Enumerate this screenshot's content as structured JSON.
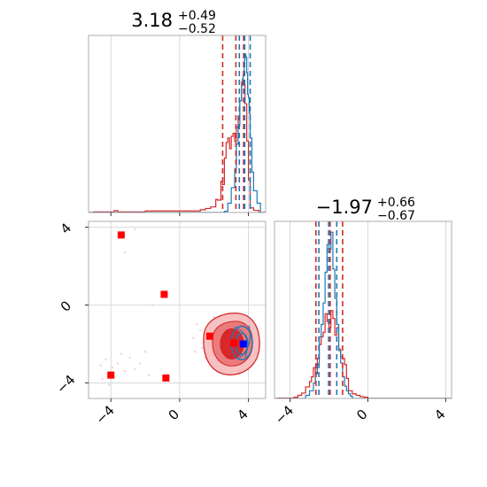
{
  "chart_data": [
    {
      "type": "histogram",
      "panel": "marginal-param-1",
      "title": {
        "value": "3.18",
        "sup": "+0.49",
        "sub": "−0.52"
      },
      "xlim": [
        -5.3,
        5.0
      ],
      "grid": true,
      "x_ticks": [
        -4,
        0,
        4
      ],
      "x_tick_labels_shown": false,
      "y_tick_labels_shown": false,
      "series": [
        {
          "color": "#d62728",
          "bin_edges": [
            -5.0,
            -3.8,
            -3.6,
            -2.0,
            1.2,
            1.5,
            1.8,
            2.1,
            2.2,
            2.4,
            2.5,
            2.6,
            2.7,
            2.8,
            2.9,
            3.0,
            3.1,
            3.2,
            3.3,
            3.4,
            3.5,
            3.6,
            3.7,
            3.8,
            3.9,
            4.0,
            4.1,
            4.3,
            4.6
          ],
          "heights": [
            0.2,
            0.6,
            0.2,
            0.5,
            0.9,
            1.3,
            1.8,
            4.2,
            4.0,
            10.0,
            9.0,
            17.5,
            22.5,
            24.0,
            20.5,
            24.5,
            25.5,
            23.0,
            27.5,
            31.0,
            36.0,
            42.0,
            41.0,
            35.0,
            23.0,
            10.5,
            1.5,
            0.7
          ]
        },
        {
          "color": "#1f77b4",
          "bin_edges": [
            2.6,
            2.8,
            3.0,
            3.2,
            3.3,
            3.4,
            3.5,
            3.6,
            3.65,
            3.7,
            3.75,
            3.8,
            3.85,
            3.9,
            3.95,
            4.0,
            4.05,
            4.1,
            4.2,
            4.3,
            4.5,
            4.7
          ],
          "heights": [
            0.4,
            3.0,
            8.0,
            14.0,
            22.0,
            28.0,
            36.0,
            41.0,
            43.0,
            44.5,
            49.0,
            51.0,
            50.0,
            45.0,
            38.0,
            37.0,
            32.0,
            24.0,
            13.0,
            7.0,
            3.0
          ]
        }
      ],
      "quantile_lines": [
        {
          "color": "#d62728",
          "x": [
            2.5,
            3.27,
            3.72
          ]
        },
        {
          "color": "#1f77b4",
          "x": [
            3.47,
            3.78,
            4.1
          ]
        }
      ]
    },
    {
      "type": "scatter-contour",
      "panel": "joint-param-1-vs-param-2",
      "xlim": [
        -5.3,
        5.0
      ],
      "ylim": [
        -4.8,
        4.3
      ],
      "grid": true,
      "x_ticks": [
        -4,
        0,
        4
      ],
      "x_tick_labels": [
        "−4",
        "0",
        "4"
      ],
      "y_ticks": [
        -4,
        0,
        4
      ],
      "y_tick_labels": [
        "−4",
        "0",
        "4"
      ],
      "markers": [
        {
          "x": -3.4,
          "y": 3.6,
          "color": "#ff0000",
          "shape": "square"
        },
        {
          "x": -0.9,
          "y": 0.55,
          "color": "#ff0000",
          "shape": "square"
        },
        {
          "x": -4.0,
          "y": -3.6,
          "color": "#ff0000",
          "shape": "square"
        },
        {
          "x": -0.8,
          "y": -3.75,
          "color": "#ff0000",
          "shape": "square"
        },
        {
          "x": 1.75,
          "y": -1.6,
          "color": "#ff0000",
          "shape": "square"
        },
        {
          "x": 3.15,
          "y": -1.95,
          "color": "#ff0000",
          "shape": "square"
        },
        {
          "x": 3.7,
          "y": -2.0,
          "color": "#0000ff",
          "shape": "square"
        }
      ],
      "scatter_points": {
        "color": "#f7c5d0",
        "points": [
          [
            -4.6,
            -3.1
          ],
          [
            -4.3,
            -2.8
          ],
          [
            -3.9,
            -3.2
          ],
          [
            -3.6,
            -3.0
          ],
          [
            -3.2,
            -3.4
          ],
          [
            -2.9,
            -2.7
          ],
          [
            -2.6,
            -3.3
          ],
          [
            -4.1,
            -4.1
          ],
          [
            -3.4,
            -2.5
          ],
          [
            -2.3,
            -3.0
          ],
          [
            -4.5,
            -3.8
          ],
          [
            -2.0,
            -2.4
          ],
          [
            -1.8,
            -3.6
          ],
          [
            -3.0,
            -4.0
          ],
          [
            -3.2,
            2.7
          ],
          [
            -2.6,
            3.9
          ],
          [
            -1.6,
            0.0
          ],
          [
            1.0,
            -1.0
          ],
          [
            0.9,
            -2.4
          ],
          [
            1.2,
            -1.3
          ],
          [
            1.5,
            -2.7
          ],
          [
            0.8,
            -1.7
          ],
          [
            1.3,
            -2.2
          ],
          [
            2.0,
            -0.6
          ]
        ]
      },
      "contours": [
        {
          "kind": "filled",
          "color": "#f7c1c1",
          "level": "outer"
        },
        {
          "kind": "filled",
          "color": "#eb7a7b",
          "level": "middle"
        },
        {
          "kind": "filled",
          "color": "#d9282a",
          "level": "inner"
        },
        {
          "kind": "line",
          "color": "#d62728",
          "level": "outer"
        },
        {
          "kind": "line",
          "color": "#1f77b4",
          "level": "blue"
        }
      ]
    },
    {
      "type": "histogram",
      "panel": "marginal-param-2",
      "title": {
        "value": "−1.97",
        "sup": "+0.66",
        "sub": "−0.67"
      },
      "xlim": [
        -4.8,
        4.3
      ],
      "grid": true,
      "x_ticks": [
        -4,
        0,
        4
      ],
      "x_tick_labels": [
        "−4",
        "0",
        "4"
      ],
      "y_tick_labels_shown": false,
      "series": [
        {
          "color": "#d62728",
          "bin_edges": [
            -4.6,
            -3.8,
            -3.6,
            -3.4,
            -3.2,
            -3.0,
            -2.9,
            -2.8,
            -2.7,
            -2.6,
            -2.5,
            -2.4,
            -2.3,
            -2.2,
            -2.1,
            -2.0,
            -1.9,
            -1.8,
            -1.7,
            -1.6,
            -1.5,
            -1.4,
            -1.3,
            -1.2,
            -1.1,
            -1.0,
            -0.8,
            -0.6,
            -0.4,
            -0.2,
            0.0
          ],
          "heights": [
            0.2,
            0.8,
            2.0,
            3.5,
            7.5,
            11.0,
            14.0,
            20.0,
            16.0,
            26.0,
            35.0,
            40.0,
            43.0,
            55.0,
            50.0,
            46.0,
            57.0,
            52.0,
            41.0,
            46.0,
            32.0,
            27.0,
            26.0,
            22.0,
            13.0,
            5.0,
            3.0,
            2.0,
            1.2,
            0.8
          ]
        },
        {
          "color": "#1f77b4",
          "bin_edges": [
            -3.2,
            -3.0,
            -2.8,
            -2.7,
            -2.6,
            -2.5,
            -2.4,
            -2.3,
            -2.2,
            -2.1,
            -2.0,
            -1.9,
            -1.8,
            -1.7,
            -1.6,
            -1.5,
            -1.4,
            -1.3,
            -1.2,
            -1.1,
            -1.0,
            -0.9,
            -0.8
          ],
          "heights": [
            2.0,
            5.0,
            10.0,
            16.0,
            22.0,
            40.0,
            48.0,
            62.0,
            82.0,
            100.0,
            97.0,
            108.0,
            84.0,
            65.0,
            48.0,
            31.0,
            23.0,
            14.0,
            8.0,
            5.0,
            3.0,
            1.5
          ]
        }
      ],
      "quantile_lines": [
        {
          "color": "#d62728",
          "x": [
            -2.67,
            -1.94,
            -1.3
          ]
        },
        {
          "color": "#1f77b4",
          "x": [
            -2.52,
            -2.02,
            -1.6
          ]
        }
      ]
    }
  ]
}
